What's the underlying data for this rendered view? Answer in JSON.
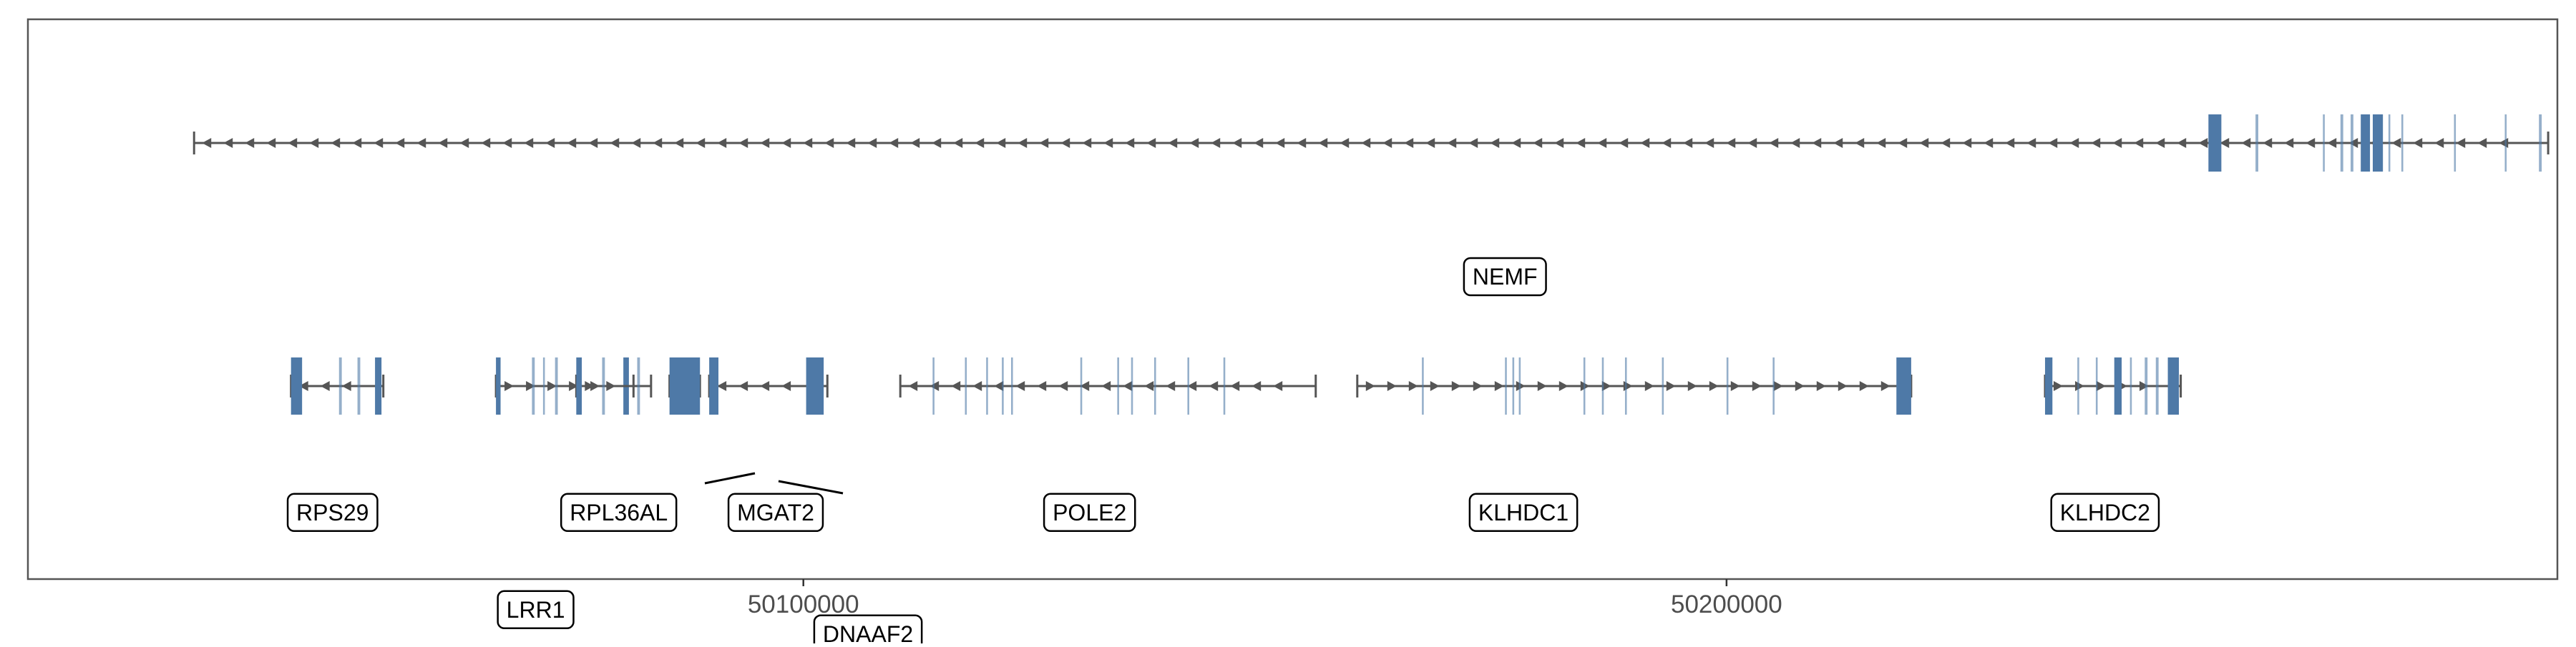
{
  "chart_data": {
    "type": "gene_track",
    "xlim": [
      50016000,
      50290000
    ],
    "x_ticks": [
      {
        "value": 50100000,
        "label": "50100000"
      },
      {
        "value": 50200000,
        "label": "50200000"
      }
    ],
    "grid": false,
    "colors": {
      "exon": "#4e79a7",
      "intron": "#555555",
      "frame": "#555555",
      "axis_text": "#4d4d4d"
    },
    "genes": [
      {
        "name": "NEMF",
        "row": 0,
        "strand": "-",
        "start": 50034000,
        "end": 50289000,
        "exons": [
          [
            50252200,
            50253600
          ],
          [
            50257300,
            50257600
          ],
          [
            50264600,
            50264800
          ],
          [
            50266500,
            50266800
          ],
          [
            50267600,
            50267900
          ],
          [
            50268700,
            50269700
          ],
          [
            50270000,
            50271100
          ],
          [
            50271700,
            50271900
          ],
          [
            50273100,
            50273300
          ],
          [
            50278800,
            50279000
          ],
          [
            50284300,
            50284500
          ],
          [
            50288000,
            50288300
          ]
        ],
        "label": {
          "text": "NEMF",
          "x": 50176000,
          "y": 0.55
        }
      },
      {
        "name": "RPS29",
        "row": 1,
        "strand": "-",
        "start": 50044500,
        "end": 50054500,
        "exons": [
          [
            50044500,
            50045700
          ],
          [
            50049700,
            50050000
          ],
          [
            50051700,
            50052000
          ],
          [
            50053600,
            50054300
          ]
        ],
        "label": {
          "text": "RPS29",
          "x": 50049000,
          "y": 1.52
        }
      },
      {
        "name": "LRR1",
        "row": 1,
        "strand": "+",
        "start": 50066700,
        "end": 50081600,
        "exons": [
          [
            50066700,
            50067200
          ],
          [
            50070600,
            50070900
          ],
          [
            50071800,
            50072000
          ],
          [
            50073100,
            50073400
          ],
          [
            50080500,
            50081100
          ]
        ],
        "label": {
          "text": "LRR1",
          "x": 50071000,
          "y": 1.92
        }
      },
      {
        "name": "RPL36AL",
        "row": 1,
        "strand": "+",
        "start": 50075400,
        "end": 50083500,
        "exons": [
          [
            50075400,
            50076000
          ],
          [
            50078200,
            50078500
          ],
          [
            50082000,
            50082300
          ]
        ],
        "label": {
          "text": "RPL36AL",
          "x": 50080000,
          "y": 1.52
        }
      },
      {
        "name": "MGAT2",
        "row": 1,
        "strand": "+",
        "start": 50085500,
        "end": 50088800,
        "exons": [
          [
            50085500,
            50088800
          ]
        ],
        "label": {
          "text": "MGAT2",
          "x": 50097000,
          "y": 1.52
        }
      },
      {
        "name": "DNAAF2",
        "row": 1,
        "strand": "-",
        "start": 50089800,
        "end": 50102600,
        "exons": [
          [
            50089800,
            50090800
          ],
          [
            50100300,
            50102200
          ]
        ],
        "label": {
          "text": "DNAAF2",
          "x": 50107000,
          "y": 2.02
        }
      },
      {
        "name": "POLE2",
        "row": 1,
        "strand": "-",
        "start": 50110500,
        "end": 50155500,
        "exons": [
          [
            50114000,
            50114200
          ],
          [
            50117500,
            50117700
          ],
          [
            50119800,
            50120000
          ],
          [
            50121500,
            50121700
          ],
          [
            50122500,
            50122700
          ],
          [
            50130000,
            50130200
          ],
          [
            50134000,
            50134200
          ],
          [
            50135500,
            50135700
          ],
          [
            50138000,
            50138200
          ],
          [
            50141600,
            50141800
          ],
          [
            50145500,
            50145700
          ]
        ],
        "label": {
          "text": "POLE2",
          "x": 50131000,
          "y": 1.52
        }
      },
      {
        "name": "KLHDC1",
        "row": 1,
        "strand": "+",
        "start": 50160000,
        "end": 50220000,
        "exons": [
          [
            50167000,
            50167200
          ],
          [
            50176000,
            50176200
          ],
          [
            50176800,
            50177000
          ],
          [
            50177500,
            50177700
          ],
          [
            50184500,
            50184700
          ],
          [
            50186500,
            50186700
          ],
          [
            50189000,
            50189200
          ],
          [
            50193000,
            50193200
          ],
          [
            50200000,
            50200200
          ],
          [
            50205000,
            50205200
          ],
          [
            50218400,
            50220000
          ]
        ],
        "label": {
          "text": "KLHDC1",
          "x": 50178000,
          "y": 1.52
        }
      },
      {
        "name": "KLHDC2",
        "row": 1,
        "strand": "+",
        "start": 50234500,
        "end": 50249200,
        "exons": [
          [
            50234500,
            50235300
          ],
          [
            50238000,
            50238200
          ],
          [
            50240000,
            50240200
          ],
          [
            50242000,
            50242800
          ],
          [
            50243700,
            50243900
          ],
          [
            50245300,
            50245600
          ],
          [
            50246500,
            50246800
          ],
          [
            50247800,
            50249000
          ]
        ],
        "label": {
          "text": "KLHDC2",
          "x": 50241000,
          "y": 1.52
        }
      }
    ],
    "label_leaders": [
      {
        "gene": "MGAT2"
      },
      {
        "gene": "DNAAF2"
      }
    ]
  }
}
